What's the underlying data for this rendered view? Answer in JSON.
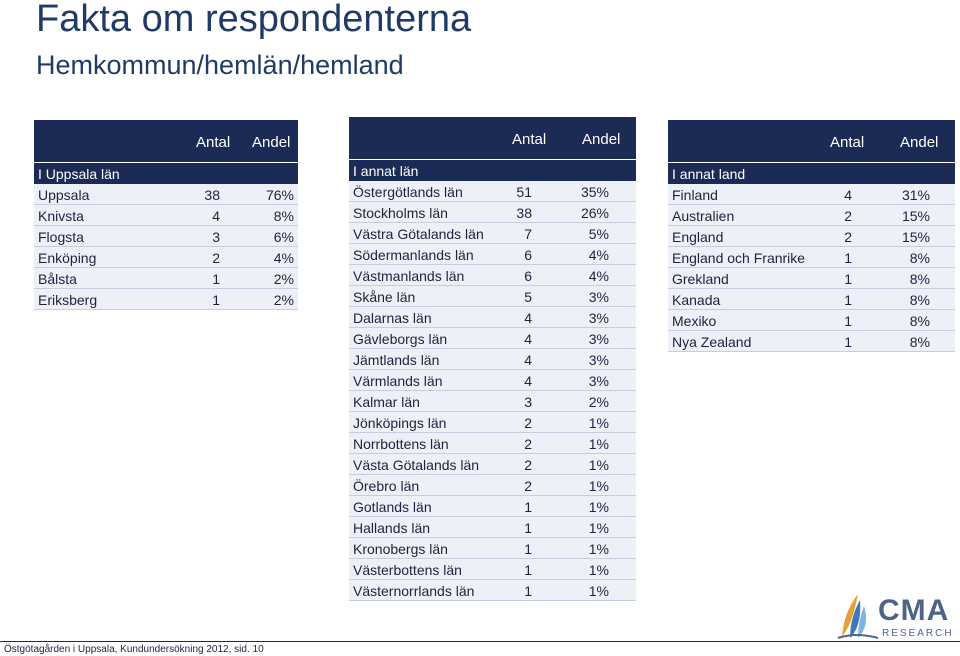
{
  "header": {
    "title": "Fakta om respondenterna",
    "subtitle": "Hemkommun/hemlän/hemland"
  },
  "columns": {
    "antal": "Antal",
    "andel": "Andel"
  },
  "left_table": {
    "group_label": "I Uppsala län",
    "rows": [
      {
        "name": "Uppsala",
        "antal": "38",
        "andel": "76%"
      },
      {
        "name": "Knivsta",
        "antal": "4",
        "andel": "8%"
      },
      {
        "name": "Flogsta",
        "antal": "3",
        "andel": "6%"
      },
      {
        "name": "Enköping",
        "antal": "2",
        "andel": "4%"
      },
      {
        "name": "Bålsta",
        "antal": "1",
        "andel": "2%"
      },
      {
        "name": "Eriksberg",
        "antal": "1",
        "andel": "2%"
      }
    ]
  },
  "middle_table": {
    "group_label": "I annat län",
    "rows": [
      {
        "name": "Östergötlands län",
        "antal": "51",
        "andel": "35%"
      },
      {
        "name": "Stockholms län",
        "antal": "38",
        "andel": "26%"
      },
      {
        "name": "Västra Götalands län",
        "antal": "7",
        "andel": "5%"
      },
      {
        "name": "Södermanlands län",
        "antal": "6",
        "andel": "4%"
      },
      {
        "name": "Västmanlands län",
        "antal": "6",
        "andel": "4%"
      },
      {
        "name": "Skåne län",
        "antal": "5",
        "andel": "3%"
      },
      {
        "name": "Dalarnas län",
        "antal": "4",
        "andel": "3%"
      },
      {
        "name": "Gävleborgs län",
        "antal": "4",
        "andel": "3%"
      },
      {
        "name": "Jämtlands län",
        "antal": "4",
        "andel": "3%"
      },
      {
        "name": "Värmlands län",
        "antal": "4",
        "andel": "3%"
      },
      {
        "name": "Kalmar län",
        "antal": "3",
        "andel": "2%"
      },
      {
        "name": "Jönköpings län",
        "antal": "2",
        "andel": "1%"
      },
      {
        "name": "Norrbottens län",
        "antal": "2",
        "andel": "1%"
      },
      {
        "name": "Västa Götalands län",
        "antal": "2",
        "andel": "1%"
      },
      {
        "name": "Örebro län",
        "antal": "2",
        "andel": "1%"
      },
      {
        "name": "Gotlands län",
        "antal": "1",
        "andel": "1%"
      },
      {
        "name": "Hallands län",
        "antal": "1",
        "andel": "1%"
      },
      {
        "name": "Kronobergs län",
        "antal": "1",
        "andel": "1%"
      },
      {
        "name": "Västerbottens län",
        "antal": "1",
        "andel": "1%"
      },
      {
        "name": "Västernorrlands län",
        "antal": "1",
        "andel": "1%"
      }
    ]
  },
  "right_table": {
    "group_label": "I annat land",
    "rows": [
      {
        "name": "Finland",
        "antal": "4",
        "andel": "31%"
      },
      {
        "name": "Australien",
        "antal": "2",
        "andel": "15%"
      },
      {
        "name": "England",
        "antal": "2",
        "andel": "15%"
      },
      {
        "name": "England och Franrike",
        "antal": "1",
        "andel": "8%"
      },
      {
        "name": "Grekland",
        "antal": "1",
        "andel": "8%"
      },
      {
        "name": "Kanada",
        "antal": "1",
        "andel": "8%"
      },
      {
        "name": "Mexiko",
        "antal": "1",
        "andel": "8%"
      },
      {
        "name": "Nya Zealand",
        "antal": "1",
        "andel": "8%"
      }
    ]
  },
  "footer": {
    "text": "Östgötagården i Uppsala, Kundundersökning 2012, sid. 10"
  },
  "logo": {
    "name": "CMA",
    "tagline": "RESEARCH"
  }
}
